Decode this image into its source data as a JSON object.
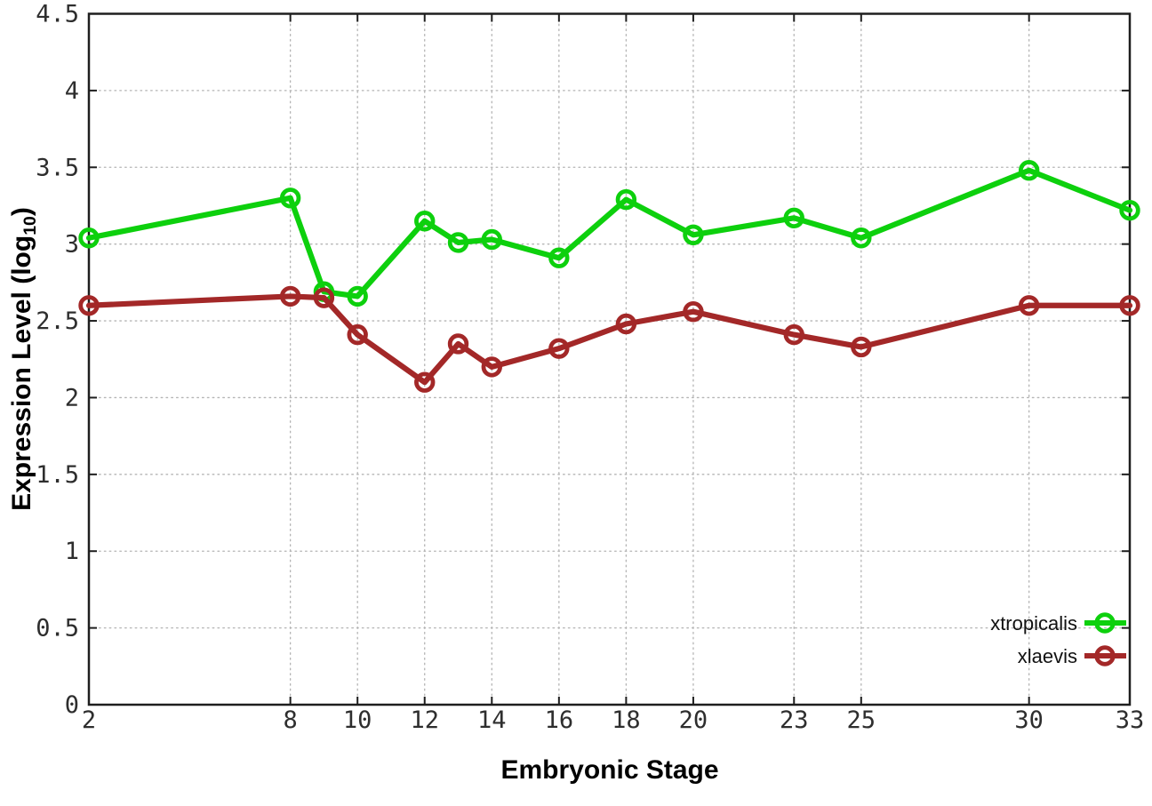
{
  "chart_data": {
    "type": "line",
    "title": "",
    "xlabel": "Embryonic Stage",
    "ylabel": {
      "text": "Expression Level (log",
      "subscript": "10",
      "suffix": ")"
    },
    "xlim": [
      2,
      33
    ],
    "ylim": [
      0,
      4.5
    ],
    "x_ticks": [
      2,
      8,
      10,
      12,
      14,
      16,
      18,
      20,
      23,
      25,
      30,
      33
    ],
    "y_ticks": [
      0,
      0.5,
      1,
      1.5,
      2,
      2.5,
      3,
      3.5,
      4,
      4.5
    ],
    "grid": true,
    "legend_position": "bottom-right",
    "marker": "open-circle",
    "x": [
      2,
      8,
      9,
      10,
      12,
      13,
      14,
      16,
      18,
      20,
      23,
      25,
      30,
      33
    ],
    "series": [
      {
        "name": "xtropicalis",
        "color": "#0dd00d",
        "values": [
          3.04,
          3.3,
          2.69,
          2.66,
          3.15,
          3.01,
          3.03,
          2.91,
          3.29,
          3.06,
          3.17,
          3.04,
          3.48,
          3.22
        ]
      },
      {
        "name": "xlaevis",
        "color": "#a32828",
        "values": [
          2.6,
          2.66,
          2.65,
          2.41,
          2.1,
          2.35,
          2.2,
          2.32,
          2.48,
          2.56,
          2.41,
          2.33,
          2.6,
          2.6
        ]
      }
    ]
  },
  "colors": {
    "background": "#ffffff",
    "grid": "#b4b4b4",
    "border": "#1e1e1e",
    "tick_label": "#2e2e2e",
    "legend_text": "#111111"
  }
}
